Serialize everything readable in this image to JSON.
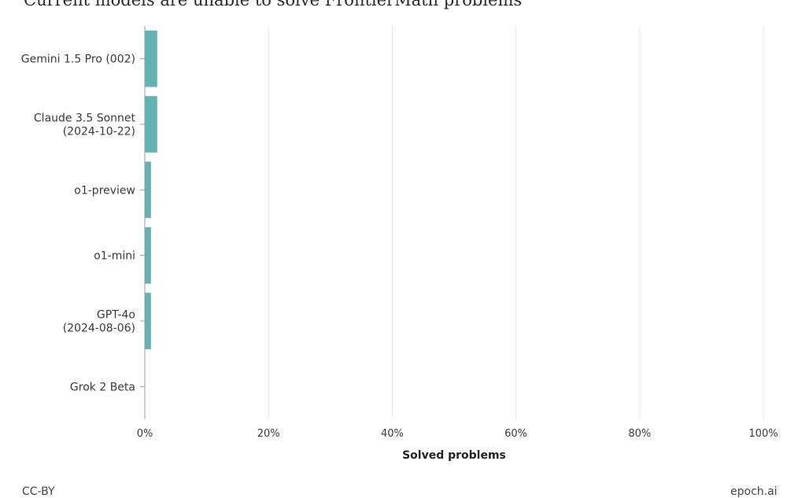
{
  "title": "Current models are unable to solve FrontierMath problems",
  "logo_name": "epoch-ai-logo",
  "footer": {
    "left": "CC-BY",
    "right": "epoch.ai"
  },
  "colors": {
    "bar": "#63b2b4",
    "grid": "#e6e6e6",
    "axis": "#9a9a9a",
    "text": "#3a3a3a"
  },
  "chart_data": {
    "type": "bar",
    "orientation": "horizontal",
    "categories": [
      "Gemini 1.5 Pro (002)",
      "Claude 3.5 Sonnet (2024-10-22)",
      "o1-preview",
      "o1-mini",
      "GPT-4o (2024-08-06)",
      "Grok 2 Beta"
    ],
    "category_label_lines": [
      [
        "Gemini 1.5 Pro (002)"
      ],
      [
        "Claude 3.5 Sonnet",
        "(2024-10-22)"
      ],
      [
        "o1-preview"
      ],
      [
        "o1-mini"
      ],
      [
        "GPT-4o",
        "(2024-08-06)"
      ],
      [
        "Grok 2 Beta"
      ]
    ],
    "values": [
      2.0,
      2.0,
      1.0,
      1.0,
      1.0,
      0.0
    ],
    "xlabel": "Solved problems",
    "ylabel": "",
    "xlim": [
      0,
      100
    ],
    "xticks": [
      0,
      20,
      40,
      60,
      80,
      100
    ],
    "xtick_labels": [
      "0%",
      "20%",
      "40%",
      "60%",
      "80%",
      "100%"
    ],
    "grid": true,
    "legend": "none"
  }
}
